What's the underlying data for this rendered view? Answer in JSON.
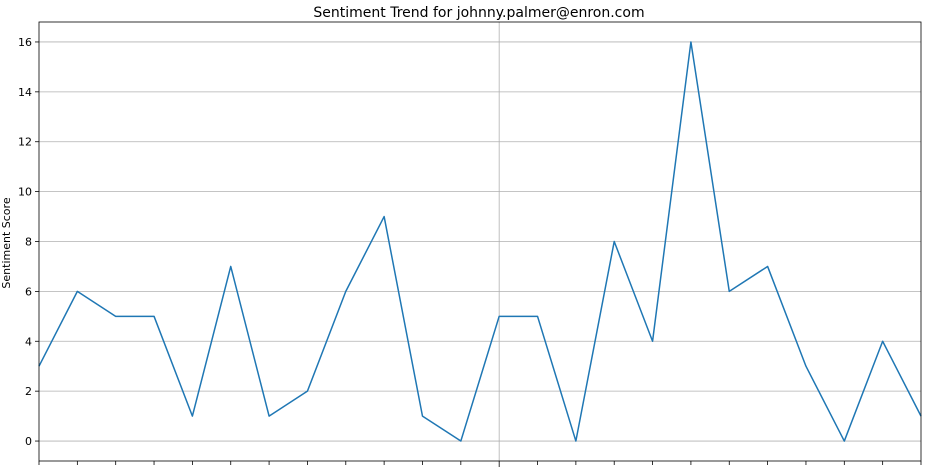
{
  "chart_data": {
    "type": "line",
    "title": "Sentiment Trend for johnny.palmer@enron.com",
    "xlabel": "",
    "ylabel": "Sentiment Score",
    "ylim": [
      -0.8,
      16.8
    ],
    "y_ticks": [
      0,
      2,
      4,
      6,
      8,
      10,
      12,
      14,
      16
    ],
    "x_ticks_count": 24,
    "x_grid_at_index": 12,
    "grid": "horizontal and one vertical",
    "series": [
      {
        "color": "#1f77b4",
        "values": [
          3,
          6,
          5,
          5,
          1,
          7,
          1,
          2,
          6,
          9,
          1,
          0,
          5,
          5,
          0,
          8,
          4,
          16,
          6,
          7,
          3,
          0,
          4,
          1
        ]
      }
    ]
  }
}
